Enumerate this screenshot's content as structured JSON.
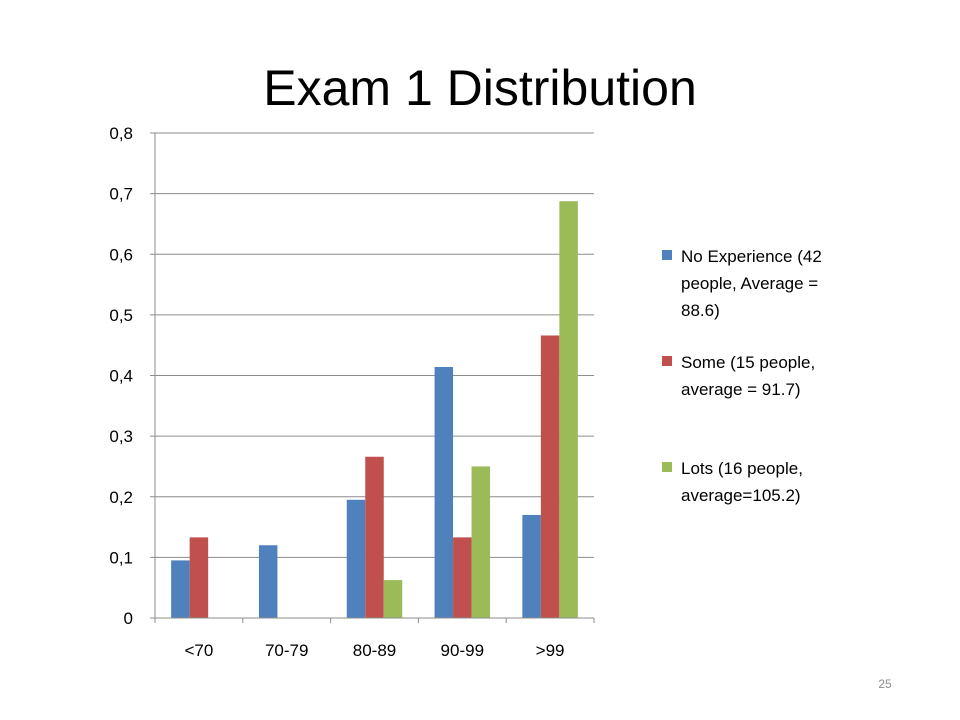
{
  "slide": {
    "title": "Exam 1 Distribution",
    "page_number": "25"
  },
  "chart_data": {
    "type": "bar",
    "title": "",
    "xlabel": "",
    "ylabel": "",
    "categories": [
      "<70",
      "70-79",
      "80-89",
      "90-99",
      ">99"
    ],
    "ylim": [
      0,
      0.8
    ],
    "yticks": [
      "0",
      "0,1",
      "0,2",
      "0,3",
      "0,4",
      "0,5",
      "0,6",
      "0,7",
      "0,8"
    ],
    "grid": true,
    "legend_position": "right",
    "series": [
      {
        "name": "No Experience (42 people, Average = 88.6)",
        "color": "#4f81bd",
        "values": [
          0.095,
          0.12,
          0.195,
          0.414,
          0.17
        ]
      },
      {
        "name": "Some (15 people, average = 91.7)",
        "color": "#c0504d",
        "values": [
          0.133,
          0.0,
          0.266,
          0.133,
          0.466
        ]
      },
      {
        "name": "Lots (16 people, average=105.2)",
        "color": "#9bbb59",
        "values": [
          0.0,
          0.0,
          0.0625,
          0.25,
          0.6875
        ]
      }
    ]
  }
}
